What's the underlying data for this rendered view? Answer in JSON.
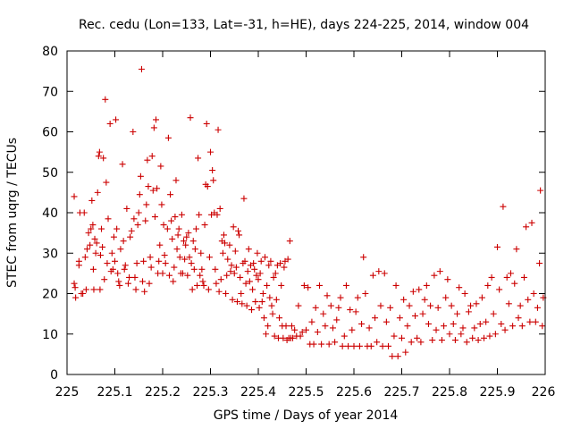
{
  "chart_data": {
    "type": "scatter",
    "title": "Rec. cedu (Lon=133, Lat=-31, h=HE), days 224-225, 2014, window 004",
    "xlabel": "GPS time / Days of year 2014",
    "ylabel": "STEC from uqrg / TECUs",
    "xlim": [
      225,
      226
    ],
    "ylim": [
      0,
      80
    ],
    "x_ticks": [
      "225",
      "225.1",
      "225.2",
      "225.3",
      "225.4",
      "225.5",
      "225.6",
      "225.7",
      "225.8",
      "225.9",
      "226"
    ],
    "y_ticks": [
      "0",
      "10",
      "20",
      "30",
      "40",
      "50",
      "60",
      "70",
      "80"
    ],
    "grid": false,
    "marker": "+",
    "colors": {
      "points": "#cc0000"
    },
    "points": [
      [
        225.015,
        44.0
      ],
      [
        225.015,
        22.5
      ],
      [
        225.017,
        21.5
      ],
      [
        225.018,
        19.0
      ],
      [
        225.025,
        27.0
      ],
      [
        225.025,
        28.0
      ],
      [
        225.027,
        40.0
      ],
      [
        225.03,
        20.0
      ],
      [
        225.033,
        20.0
      ],
      [
        225.036,
        40.0
      ],
      [
        225.038,
        29.0
      ],
      [
        225.04,
        21.0
      ],
      [
        225.042,
        31.0
      ],
      [
        225.045,
        35.0
      ],
      [
        225.048,
        32.0
      ],
      [
        225.05,
        36.0
      ],
      [
        225.052,
        43.0
      ],
      [
        225.054,
        37.0
      ],
      [
        225.055,
        26.0
      ],
      [
        225.056,
        21.0
      ],
      [
        225.058,
        33.5
      ],
      [
        225.06,
        30.0
      ],
      [
        225.062,
        32.5
      ],
      [
        225.064,
        45.0
      ],
      [
        225.066,
        54.0
      ],
      [
        225.068,
        55.0
      ],
      [
        225.069,
        21.0
      ],
      [
        225.07,
        29.5
      ],
      [
        225.072,
        36.0
      ],
      [
        225.074,
        31.5
      ],
      [
        225.076,
        53.5
      ],
      [
        225.078,
        23.5
      ],
      [
        225.08,
        68.0
      ],
      [
        225.082,
        47.5
      ],
      [
        225.084,
        27.5
      ],
      [
        225.086,
        38.5
      ],
      [
        225.09,
        62.0
      ],
      [
        225.092,
        25.5
      ],
      [
        225.094,
        30.0
      ],
      [
        225.096,
        26.0
      ],
      [
        225.098,
        34.0
      ],
      [
        225.1,
        28.0
      ],
      [
        225.102,
        63.0
      ],
      [
        225.104,
        36.0
      ],
      [
        225.106,
        25.0
      ],
      [
        225.108,
        23.0
      ],
      [
        225.11,
        22.0
      ],
      [
        225.112,
        31.0
      ],
      [
        225.116,
        52.0
      ],
      [
        225.118,
        33.0
      ],
      [
        225.12,
        26.0
      ],
      [
        225.122,
        27.0
      ],
      [
        225.125,
        41.0
      ],
      [
        225.128,
        22.5
      ],
      [
        225.13,
        24.0
      ],
      [
        225.132,
        34.0
      ],
      [
        225.135,
        35.5
      ],
      [
        225.138,
        60.0
      ],
      [
        225.14,
        38.5
      ],
      [
        225.142,
        24.0
      ],
      [
        225.144,
        21.0
      ],
      [
        225.146,
        27.5
      ],
      [
        225.148,
        37.0
      ],
      [
        225.15,
        40.0
      ],
      [
        225.152,
        44.5
      ],
      [
        225.154,
        49.0
      ],
      [
        225.156,
        75.5
      ],
      [
        225.158,
        23.0
      ],
      [
        225.16,
        28.0
      ],
      [
        225.162,
        20.5
      ],
      [
        225.164,
        38.0
      ],
      [
        225.166,
        42.0
      ],
      [
        225.168,
        53.0
      ],
      [
        225.17,
        46.5
      ],
      [
        225.172,
        22.5
      ],
      [
        225.174,
        29.0
      ],
      [
        225.176,
        26.5
      ],
      [
        225.178,
        54.0
      ],
      [
        225.18,
        45.5
      ],
      [
        225.182,
        61.0
      ],
      [
        225.184,
        39.0
      ],
      [
        225.186,
        63.0
      ],
      [
        225.188,
        46.0
      ],
      [
        225.19,
        25.0
      ],
      [
        225.192,
        28.0
      ],
      [
        225.194,
        32.0
      ],
      [
        225.196,
        51.5
      ],
      [
        225.198,
        42.0
      ],
      [
        225.2,
        25.0
      ],
      [
        225.202,
        37.0
      ],
      [
        225.204,
        29.5
      ],
      [
        225.206,
        27.5
      ],
      [
        225.21,
        36.0
      ],
      [
        225.212,
        58.5
      ],
      [
        225.214,
        24.5
      ],
      [
        225.216,
        44.5
      ],
      [
        225.218,
        38.0
      ],
      [
        225.22,
        33.5
      ],
      [
        225.222,
        23.0
      ],
      [
        225.224,
        26.5
      ],
      [
        225.226,
        39.0
      ],
      [
        225.228,
        48.0
      ],
      [
        225.23,
        31.0
      ],
      [
        225.232,
        34.5
      ],
      [
        225.234,
        36.0
      ],
      [
        225.236,
        29.0
      ],
      [
        225.238,
        25.0
      ],
      [
        225.24,
        39.5
      ],
      [
        225.242,
        25.0
      ],
      [
        225.244,
        33.0
      ],
      [
        225.246,
        28.5
      ],
      [
        225.248,
        32.0
      ],
      [
        225.25,
        34.0
      ],
      [
        225.252,
        24.5
      ],
      [
        225.254,
        35.0
      ],
      [
        225.256,
        29.0
      ],
      [
        225.258,
        63.5
      ],
      [
        225.26,
        27.5
      ],
      [
        225.262,
        21.0
      ],
      [
        225.264,
        33.0
      ],
      [
        225.266,
        26.0
      ],
      [
        225.268,
        31.0
      ],
      [
        225.27,
        36.0
      ],
      [
        225.272,
        22.0
      ],
      [
        225.274,
        53.5
      ],
      [
        225.276,
        39.5
      ],
      [
        225.278,
        24.5
      ],
      [
        225.28,
        30.0
      ],
      [
        225.282,
        26.0
      ],
      [
        225.284,
        23.0
      ],
      [
        225.286,
        22.0
      ],
      [
        225.288,
        37.0
      ],
      [
        225.29,
        47.0
      ],
      [
        225.292,
        62.0
      ],
      [
        225.294,
        46.5
      ],
      [
        225.296,
        21.0
      ],
      [
        225.298,
        29.0
      ],
      [
        225.3,
        55.0
      ],
      [
        225.302,
        39.5
      ],
      [
        225.304,
        50.5
      ],
      [
        225.306,
        48.0
      ],
      [
        225.308,
        40.0
      ],
      [
        225.31,
        26.0
      ],
      [
        225.312,
        22.5
      ],
      [
        225.314,
        39.5
      ],
      [
        225.316,
        60.5
      ],
      [
        225.318,
        20.5
      ],
      [
        225.32,
        41.0
      ],
      [
        225.322,
        23.5
      ],
      [
        225.324,
        33.0
      ],
      [
        225.326,
        30.0
      ],
      [
        225.328,
        34.5
      ],
      [
        225.33,
        32.5
      ],
      [
        225.332,
        20.0
      ],
      [
        225.334,
        24.5
      ],
      [
        225.336,
        28.5
      ],
      [
        225.34,
        32.0
      ],
      [
        225.342,
        25.5
      ],
      [
        225.344,
        27.0
      ],
      [
        225.346,
        18.5
      ],
      [
        225.348,
        36.5
      ],
      [
        225.35,
        25.0
      ],
      [
        225.352,
        30.5
      ],
      [
        225.354,
        26.5
      ],
      [
        225.356,
        18.0
      ],
      [
        225.358,
        35.5
      ],
      [
        225.36,
        34.5
      ],
      [
        225.362,
        24.0
      ],
      [
        225.364,
        20.0
      ],
      [
        225.366,
        17.5
      ],
      [
        225.368,
        27.5
      ],
      [
        225.37,
        43.5
      ],
      [
        225.372,
        28.0
      ],
      [
        225.374,
        22.5
      ],
      [
        225.376,
        17.0
      ],
      [
        225.378,
        25.5
      ],
      [
        225.38,
        31.0
      ],
      [
        225.382,
        23.0
      ],
      [
        225.384,
        27.0
      ],
      [
        225.386,
        16.0
      ],
      [
        225.388,
        21.0
      ],
      [
        225.39,
        27.5
      ],
      [
        225.392,
        26.0
      ],
      [
        225.394,
        18.0
      ],
      [
        225.396,
        24.5
      ],
      [
        225.398,
        30.0
      ],
      [
        225.4,
        23.5
      ],
      [
        225.402,
        16.5
      ],
      [
        225.404,
        25.0
      ],
      [
        225.406,
        28.0
      ],
      [
        225.408,
        18.0
      ],
      [
        225.41,
        20.0
      ],
      [
        225.412,
        14.0
      ],
      [
        225.414,
        29.0
      ],
      [
        225.416,
        10.0
      ],
      [
        225.418,
        22.0
      ],
      [
        225.42,
        12.0
      ],
      [
        225.422,
        27.0
      ],
      [
        225.424,
        19.0
      ],
      [
        225.426,
        28.0
      ],
      [
        225.428,
        17.0
      ],
      [
        225.43,
        15.0
      ],
      [
        225.432,
        24.0
      ],
      [
        225.434,
        9.5
      ],
      [
        225.436,
        25.0
      ],
      [
        225.438,
        18.5
      ],
      [
        225.44,
        27.0
      ],
      [
        225.442,
        9.0
      ],
      [
        225.444,
        14.0
      ],
      [
        225.446,
        27.5
      ],
      [
        225.448,
        22.0
      ],
      [
        225.45,
        12.0
      ],
      [
        225.452,
        9.0
      ],
      [
        225.454,
        26.5
      ],
      [
        225.456,
        28.0
      ],
      [
        225.458,
        12.0
      ],
      [
        225.46,
        8.5
      ],
      [
        225.462,
        28.5
      ],
      [
        225.464,
        9.0
      ],
      [
        225.466,
        33.0
      ],
      [
        225.468,
        9.0
      ],
      [
        225.47,
        12.0
      ],
      [
        225.472,
        9.0
      ],
      [
        225.476,
        11.0
      ],
      [
        225.48,
        9.5
      ],
      [
        225.484,
        17.0
      ],
      [
        225.488,
        9.5
      ],
      [
        225.492,
        10.5
      ],
      [
        225.496,
        22.0
      ],
      [
        225.5,
        11.0
      ],
      [
        225.504,
        21.5
      ],
      [
        225.508,
        7.5
      ],
      [
        225.512,
        13.0
      ],
      [
        225.516,
        7.5
      ],
      [
        225.52,
        16.5
      ],
      [
        225.524,
        10.5
      ],
      [
        225.528,
        22.0
      ],
      [
        225.532,
        7.5
      ],
      [
        225.536,
        15.0
      ],
      [
        225.54,
        12.0
      ],
      [
        225.544,
        19.5
      ],
      [
        225.548,
        7.5
      ],
      [
        225.552,
        17.0
      ],
      [
        225.556,
        11.5
      ],
      [
        225.56,
        8.0
      ],
      [
        225.564,
        13.5
      ],
      [
        225.568,
        16.5
      ],
      [
        225.572,
        19.0
      ],
      [
        225.576,
        7.0
      ],
      [
        225.58,
        9.5
      ],
      [
        225.584,
        22.0
      ],
      [
        225.588,
        7.0
      ],
      [
        225.592,
        16.0
      ],
      [
        225.596,
        11.0
      ],
      [
        225.6,
        7.0
      ],
      [
        225.604,
        15.5
      ],
      [
        225.608,
        19.0
      ],
      [
        225.612,
        7.0
      ],
      [
        225.616,
        12.5
      ],
      [
        225.62,
        29.0
      ],
      [
        225.624,
        20.0
      ],
      [
        225.628,
        7.0
      ],
      [
        225.632,
        11.5
      ],
      [
        225.636,
        7.0
      ],
      [
        225.64,
        24.5
      ],
      [
        225.644,
        14.0
      ],
      [
        225.648,
        8.0
      ],
      [
        225.652,
        25.5
      ],
      [
        225.656,
        17.0
      ],
      [
        225.66,
        7.0
      ],
      [
        225.664,
        25.0
      ],
      [
        225.668,
        13.0
      ],
      [
        225.672,
        7.0
      ],
      [
        225.676,
        16.5
      ],
      [
        225.68,
        4.5
      ],
      [
        225.684,
        9.5
      ],
      [
        225.688,
        22.0
      ],
      [
        225.692,
        4.5
      ],
      [
        225.696,
        14.0
      ],
      [
        225.7,
        9.0
      ],
      [
        225.704,
        18.5
      ],
      [
        225.708,
        5.5
      ],
      [
        225.712,
        12.0
      ],
      [
        225.716,
        17.0
      ],
      [
        225.72,
        8.0
      ],
      [
        225.724,
        20.5
      ],
      [
        225.728,
        14.5
      ],
      [
        225.732,
        9.0
      ],
      [
        225.736,
        21.0
      ],
      [
        225.74,
        8.0
      ],
      [
        225.744,
        15.0
      ],
      [
        225.748,
        18.5
      ],
      [
        225.752,
        22.0
      ],
      [
        225.756,
        12.5
      ],
      [
        225.76,
        17.0
      ],
      [
        225.764,
        8.5
      ],
      [
        225.768,
        24.5
      ],
      [
        225.772,
        11.0
      ],
      [
        225.776,
        16.5
      ],
      [
        225.78,
        25.5
      ],
      [
        225.784,
        8.5
      ],
      [
        225.788,
        12.0
      ],
      [
        225.792,
        19.0
      ],
      [
        225.796,
        23.5
      ],
      [
        225.8,
        10.0
      ],
      [
        225.804,
        17.0
      ],
      [
        225.808,
        12.5
      ],
      [
        225.812,
        8.5
      ],
      [
        225.816,
        15.0
      ],
      [
        225.82,
        21.5
      ],
      [
        225.824,
        10.0
      ],
      [
        225.828,
        11.5
      ],
      [
        225.832,
        20.0
      ],
      [
        225.836,
        8.0
      ],
      [
        225.84,
        15.5
      ],
      [
        225.844,
        17.0
      ],
      [
        225.848,
        9.0
      ],
      [
        225.852,
        11.5
      ],
      [
        225.856,
        17.5
      ],
      [
        225.86,
        8.5
      ],
      [
        225.864,
        12.5
      ],
      [
        225.868,
        19.0
      ],
      [
        225.872,
        9.0
      ],
      [
        225.876,
        13.0
      ],
      [
        225.88,
        22.0
      ],
      [
        225.884,
        9.5
      ],
      [
        225.888,
        24.0
      ],
      [
        225.892,
        15.0
      ],
      [
        225.896,
        10.0
      ],
      [
        225.9,
        31.5
      ],
      [
        225.904,
        21.0
      ],
      [
        225.908,
        12.5
      ],
      [
        225.912,
        41.5
      ],
      [
        225.916,
        11.0
      ],
      [
        225.92,
        24.0
      ],
      [
        225.924,
        17.5
      ],
      [
        225.928,
        25.0
      ],
      [
        225.932,
        12.0
      ],
      [
        225.936,
        22.5
      ],
      [
        225.94,
        31.0
      ],
      [
        225.944,
        14.0
      ],
      [
        225.948,
        17.0
      ],
      [
        225.952,
        12.0
      ],
      [
        225.956,
        24.0
      ],
      [
        225.96,
        36.5
      ],
      [
        225.964,
        18.5
      ],
      [
        225.968,
        13.0
      ],
      [
        225.972,
        37.5
      ],
      [
        225.976,
        20.0
      ],
      [
        225.98,
        13.0
      ],
      [
        225.984,
        16.5
      ],
      [
        225.988,
        27.5
      ],
      [
        225.99,
        45.5
      ],
      [
        225.994,
        12.0
      ],
      [
        225.996,
        19.0
      ]
    ]
  }
}
